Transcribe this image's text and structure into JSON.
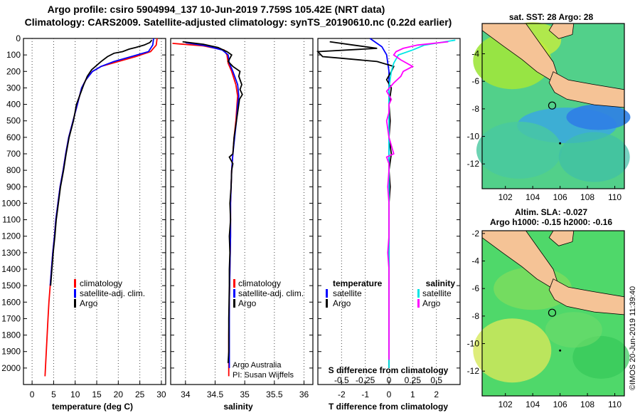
{
  "header": {
    "line1": "Argo profile: csiro 5904994_137 10-Jun-2019 7.759S 105.42E (NRT data)",
    "line2": "Climatology: CARS2009. Satellite-adjusted climatology: synTS_20190610.nc (0.22d earlier)"
  },
  "chart_data": [
    {
      "type": "line",
      "name": "temperature",
      "xlabel": "temperature (deg C)",
      "xlim": [
        -2,
        31
      ],
      "ylim": [
        2100,
        0
      ],
      "xticks": [
        0,
        5,
        10,
        15,
        20,
        25,
        30
      ],
      "yticks": [
        0,
        100,
        200,
        300,
        400,
        500,
        600,
        700,
        800,
        900,
        1000,
        1100,
        1200,
        1300,
        1400,
        1500,
        1600,
        1700,
        1800,
        1900,
        2000
      ],
      "legend": [
        "climatology",
        "satellite-adj. clim.",
        "Argo"
      ],
      "series": [
        {
          "name": "climatology",
          "color": "#ff0000",
          "points": [
            [
              29.0,
              0
            ],
            [
              28.8,
              40
            ],
            [
              27.5,
              80
            ],
            [
              24,
              110
            ],
            [
              20,
              140
            ],
            [
              16,
              170
            ],
            [
              14,
              200
            ],
            [
              12.5,
              250
            ],
            [
              11.5,
              300
            ],
            [
              10.5,
              400
            ],
            [
              9.5,
              500
            ],
            [
              8.5,
              600
            ],
            [
              7.8,
              700
            ],
            [
              7.2,
              800
            ],
            [
              6.5,
              900
            ],
            [
              6,
              1000
            ],
            [
              5.5,
              1100
            ],
            [
              5.2,
              1200
            ],
            [
              4.8,
              1300
            ],
            [
              4.5,
              1400
            ],
            [
              4.2,
              1500
            ],
            [
              3.9,
              1600
            ],
            [
              3.7,
              1700
            ],
            [
              3.5,
              1800
            ],
            [
              3.3,
              1900
            ],
            [
              3.1,
              2000
            ],
            [
              3.0,
              2050
            ]
          ]
        },
        {
          "name": "satellite-adj. clim.",
          "color": "#0000ff",
          "points": [
            [
              28.2,
              0
            ],
            [
              28,
              40
            ],
            [
              27,
              80
            ],
            [
              23,
              110
            ],
            [
              19,
              140
            ],
            [
              16,
              170
            ],
            [
              14,
              200
            ],
            [
              12.5,
              250
            ],
            [
              11.5,
              300
            ],
            [
              10.5,
              400
            ],
            [
              9.5,
              500
            ],
            [
              8.5,
              600
            ],
            [
              7.8,
              700
            ],
            [
              7.2,
              800
            ],
            [
              6.5,
              900
            ],
            [
              6,
              1000
            ],
            [
              5.5,
              1100
            ],
            [
              5.2,
              1200
            ],
            [
              4.8,
              1300
            ],
            [
              4.5,
              1400
            ],
            [
              4.2,
              1500
            ]
          ]
        },
        {
          "name": "Argo",
          "color": "#000000",
          "points": [
            [
              27.8,
              10
            ],
            [
              27.3,
              25
            ],
            [
              26,
              40
            ],
            [
              24,
              55
            ],
            [
              22.5,
              65
            ],
            [
              21,
              80
            ],
            [
              19,
              90
            ],
            [
              17.5,
              110
            ],
            [
              16,
              140
            ],
            [
              14.7,
              170
            ],
            [
              13.8,
              190
            ],
            [
              12.8,
              230
            ],
            [
              12,
              280
            ],
            [
              11,
              350
            ],
            [
              10.3,
              400
            ],
            [
              9.6,
              500
            ],
            [
              8.6,
              600
            ],
            [
              7.9,
              700
            ],
            [
              7.3,
              800
            ],
            [
              6.6,
              900
            ],
            [
              6.1,
              1000
            ],
            [
              5.6,
              1100
            ],
            [
              5.3,
              1200
            ],
            [
              4.9,
              1300
            ],
            [
              4.6,
              1400
            ],
            [
              4.3,
              1500
            ]
          ]
        }
      ]
    },
    {
      "type": "line",
      "name": "salinity",
      "xlabel": "salinity",
      "xlim": [
        33.75,
        36.15
      ],
      "ylim": [
        2100,
        0
      ],
      "xticks": [
        34,
        34.5,
        35,
        35.5,
        36
      ],
      "legend": [
        "climatology",
        "satellite-adj. clim.",
        "Argo"
      ],
      "annotations": [
        "Argo Australia",
        "PI: Susan Wijffels"
      ],
      "series": [
        {
          "name": "climatology",
          "color": "#ff0000",
          "points": [
            [
              33.78,
              30
            ],
            [
              34.3,
              45
            ],
            [
              34.65,
              70
            ],
            [
              34.7,
              100
            ],
            [
              34.72,
              150
            ],
            [
              34.78,
              200
            ],
            [
              34.85,
              280
            ],
            [
              34.88,
              350
            ],
            [
              34.87,
              400
            ],
            [
              34.85,
              500
            ],
            [
              34.82,
              600
            ],
            [
              34.8,
              700
            ],
            [
              34.78,
              800
            ],
            [
              34.77,
              900
            ],
            [
              34.76,
              1000
            ],
            [
              34.76,
              1200
            ],
            [
              34.75,
              1400
            ],
            [
              34.74,
              1600
            ],
            [
              34.73,
              1800
            ],
            [
              34.73,
              2050
            ]
          ]
        },
        {
          "name": "satellite-adj. clim.",
          "color": "#0000ff",
          "points": [
            [
              34.0,
              25
            ],
            [
              34.35,
              45
            ],
            [
              34.62,
              70
            ],
            [
              34.72,
              100
            ],
            [
              34.74,
              150
            ],
            [
              34.8,
              200
            ],
            [
              34.88,
              280
            ],
            [
              34.9,
              350
            ],
            [
              34.88,
              400
            ],
            [
              34.86,
              500
            ],
            [
              34.83,
              600
            ],
            [
              34.8,
              700
            ],
            [
              34.78,
              800
            ],
            [
              34.77,
              900
            ],
            [
              34.76,
              1000
            ],
            [
              34.76,
              1200
            ],
            [
              34.75,
              1400
            ],
            [
              34.74,
              1600
            ],
            [
              34.74,
              1800
            ],
            [
              34.74,
              2000
            ]
          ]
        },
        {
          "name": "Argo",
          "color": "#000000",
          "points": [
            [
              33.95,
              20
            ],
            [
              34.3,
              35
            ],
            [
              34.55,
              55
            ],
            [
              34.7,
              80
            ],
            [
              34.78,
              100
            ],
            [
              34.75,
              120
            ],
            [
              34.72,
              140
            ],
            [
              34.8,
              170
            ],
            [
              34.92,
              200
            ],
            [
              34.9,
              230
            ],
            [
              34.95,
              280
            ],
            [
              34.92,
              310
            ],
            [
              34.96,
              340
            ],
            [
              34.91,
              370
            ],
            [
              34.9,
              400
            ],
            [
              34.86,
              500
            ],
            [
              34.82,
              600
            ],
            [
              34.8,
              700
            ],
            [
              34.74,
              720
            ],
            [
              34.8,
              760
            ],
            [
              34.78,
              800
            ],
            [
              34.77,
              900
            ],
            [
              34.75,
              1000
            ],
            [
              34.76,
              1100
            ],
            [
              34.74,
              1200
            ],
            [
              34.75,
              1300
            ],
            [
              34.74,
              1400
            ],
            [
              34.74,
              1500
            ],
            [
              34.73,
              1700
            ],
            [
              34.73,
              1900
            ],
            [
              34.72,
              1970
            ]
          ]
        }
      ]
    },
    {
      "type": "line",
      "name": "difference from climatology",
      "xlabel": "T difference from climatology",
      "xlabel_top": "S difference from climatology",
      "xlim": [
        -3,
        3
      ],
      "ylim": [
        2100,
        0
      ],
      "xticks": [
        -2,
        -1,
        0,
        1,
        2
      ],
      "xticks_top": [
        "-0.5",
        "-0.25",
        "0",
        "0.25",
        "0.5"
      ],
      "legend_temperature": [
        "temperature",
        "satellite",
        "Argo"
      ],
      "legend_salinity": [
        "salinity",
        "satellite",
        "Argo"
      ],
      "series": [
        {
          "name": "temperature satellite",
          "color": "#0000ff",
          "points": [
            [
              -0.8,
              0
            ],
            [
              -0.3,
              50
            ],
            [
              -0.1,
              100
            ],
            [
              0,
              200
            ],
            [
              0,
              400
            ],
            [
              0,
              2000
            ]
          ]
        },
        {
          "name": "temperature Argo",
          "color": "#000000",
          "points": [
            [
              -2.5,
              20
            ],
            [
              -1.5,
              40
            ],
            [
              -0.5,
              60
            ],
            [
              -3,
              80
            ],
            [
              -2.8,
              110
            ],
            [
              -2,
              120
            ],
            [
              -0.5,
              140
            ],
            [
              0.2,
              170
            ],
            [
              0.1,
              200
            ],
            [
              -0.1,
              250
            ],
            [
              0.1,
              300
            ],
            [
              0,
              400
            ],
            [
              0.05,
              500
            ],
            [
              0,
              600
            ],
            [
              0.1,
              700
            ],
            [
              0,
              800
            ],
            [
              0.05,
              900
            ],
            [
              0,
              1000
            ],
            [
              0,
              1200
            ],
            [
              0,
              1400
            ],
            [
              0,
              1600
            ],
            [
              0,
              1800
            ],
            [
              0,
              2000
            ]
          ]
        },
        {
          "name": "salinity satellite",
          "color": "#00e5e5",
          "points": [
            [
              2.8,
              10
            ],
            [
              1.5,
              40
            ],
            [
              1.0,
              70
            ],
            [
              0.4,
              100
            ],
            [
              0.2,
              150
            ],
            [
              0.1,
              200
            ],
            [
              0,
              300
            ],
            [
              0,
              400
            ],
            [
              0,
              2000
            ]
          ]
        },
        {
          "name": "salinity Argo",
          "color": "#ff00ff",
          "points": [
            [
              2.5,
              20
            ],
            [
              1.2,
              40
            ],
            [
              0.6,
              60
            ],
            [
              0.3,
              80
            ],
            [
              0.2,
              100
            ],
            [
              0.5,
              130
            ],
            [
              1.0,
              170
            ],
            [
              0.6,
              200
            ],
            [
              0.5,
              230
            ],
            [
              0.2,
              270
            ],
            [
              -0.1,
              320
            ],
            [
              0.1,
              370
            ],
            [
              0,
              400
            ],
            [
              0,
              450
            ],
            [
              -0.1,
              500
            ],
            [
              0,
              600
            ],
            [
              0.2,
              700
            ],
            [
              -0.1,
              720
            ],
            [
              0,
              760
            ],
            [
              0,
              800
            ],
            [
              -0.05,
              900
            ],
            [
              0,
              1000
            ],
            [
              0,
              1200
            ],
            [
              -0.05,
              1300
            ],
            [
              0,
              1400
            ],
            [
              0,
              1500
            ],
            [
              0,
              1700
            ],
            [
              0,
              1900
            ],
            [
              0,
              1950
            ]
          ]
        }
      ]
    },
    {
      "type": "heatmap",
      "name": "sst-map",
      "title": "sat. SST: 28 Argo: 28",
      "xticks": [
        102,
        104,
        106,
        108,
        110
      ],
      "yticks": [
        -4,
        -6,
        -8,
        -10,
        -12
      ],
      "xlim": [
        100.3,
        110.7
      ],
      "ylim": [
        -13.8,
        -1.8
      ],
      "argo_position": [
        105.42,
        -7.759
      ]
    },
    {
      "type": "heatmap",
      "name": "sla-map",
      "title_line1": "Altim. SLA: -0.027",
      "title_line2": "Argo h1000: -0.15 h2000: -0.16",
      "xticks": [
        102,
        104,
        106,
        108,
        110
      ],
      "yticks": [
        -2,
        -4,
        -6,
        -8,
        -10,
        -12
      ],
      "xlim": [
        100.3,
        110.7
      ],
      "ylim": [
        -13.8,
        -1.8
      ],
      "argo_position": [
        105.42,
        -7.759
      ]
    }
  ],
  "credit": "©IMOS 20-Jun-2019 11:39:40",
  "colors": {
    "land": "#f5c396",
    "sst_warm": "#9ee63c",
    "sst_cool": "#2f7ee6",
    "sla_base": "#4fd86a"
  }
}
